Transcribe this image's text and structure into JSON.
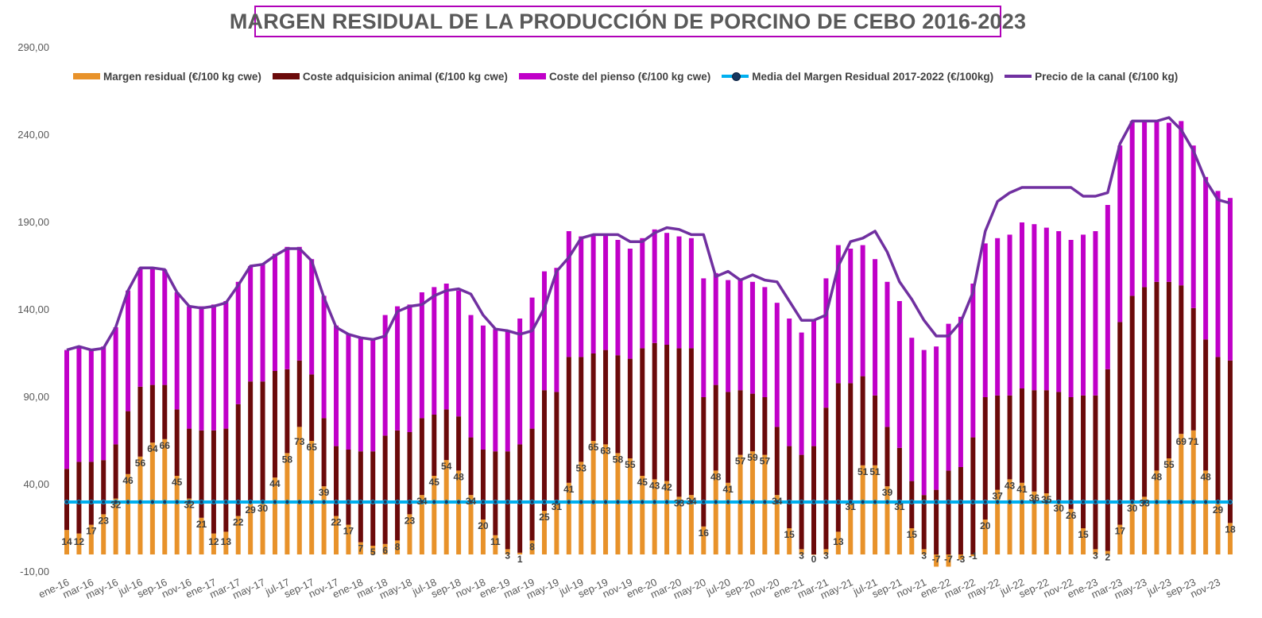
{
  "chart_data": {
    "type": "bar",
    "stacked": true,
    "title": "MARGEN RESIDUAL DE LA PRODUCCIÓN DE PORCINO DE CEBO 2016-2023",
    "ylim": [
      -10,
      290
    ],
    "yticks": [
      "-10,00",
      "40,00",
      "90,00",
      "140,00",
      "190,00",
      "240,00",
      "290,00"
    ],
    "ytick_values": [
      -10,
      40,
      90,
      140,
      190,
      240,
      290
    ],
    "legend_position": "top",
    "categories": [
      "ene-16",
      "feb-16",
      "mar-16",
      "abr-16",
      "may-16",
      "jun-16",
      "jul-16",
      "ago-16",
      "sep-16",
      "oct-16",
      "nov-16",
      "dic-16",
      "ene-17",
      "feb-17",
      "mar-17",
      "abr-17",
      "may-17",
      "jun-17",
      "jul-17",
      "ago-17",
      "sep-17",
      "oct-17",
      "nov-17",
      "dic-17",
      "ene-18",
      "feb-18",
      "mar-18",
      "abr-18",
      "may-18",
      "jun-18",
      "jul-18",
      "ago-18",
      "sep-18",
      "oct-18",
      "nov-18",
      "dic-18",
      "ene-19",
      "feb-19",
      "mar-19",
      "abr-19",
      "may-19",
      "jun-19",
      "jul-19",
      "ago-19",
      "sep-19",
      "oct-19",
      "nov-19",
      "dic-19",
      "ene-20",
      "feb-20",
      "mar-20",
      "abr-20",
      "may-20",
      "jun-20",
      "jul-20",
      "ago-20",
      "sep-20",
      "oct-20",
      "nov-20",
      "dic-20",
      "ene-21",
      "feb-21",
      "mar-21",
      "abr-21",
      "may-21",
      "jun-21",
      "jul-21",
      "ago-21",
      "sep-21",
      "oct-21",
      "nov-21",
      "dic-21",
      "ene-22",
      "feb-22",
      "mar-22",
      "abr-22",
      "may-22",
      "jun-22",
      "jul-22",
      "ago-22",
      "sep-22",
      "oct-22",
      "nov-22",
      "dic-22",
      "ene-23",
      "feb-23",
      "mar-23",
      "abr-23",
      "may-23",
      "jun-23",
      "jul-23",
      "ago-23",
      "sep-23",
      "oct-23",
      "nov-23",
      "dic-23"
    ],
    "xtick_labels": [
      "ene-16",
      "mar-16",
      "may-16",
      "jul-16",
      "sep-16",
      "nov-16",
      "ene-17",
      "mar-17",
      "may-17",
      "jul-17",
      "sep-17",
      "nov-17",
      "ene-18",
      "mar-18",
      "may-18",
      "jul-18",
      "sep-18",
      "nov-18",
      "ene-19",
      "mar-19",
      "may-19",
      "jul-19",
      "sep-19",
      "nov-19",
      "ene-20",
      "mar-20",
      "may-20",
      "jul-20",
      "sep-20",
      "nov-20",
      "ene-21",
      "mar-21",
      "may-21",
      "jul-21",
      "sep-21",
      "nov-21",
      "ene-22",
      "mar-22",
      "may-22",
      "jul-22",
      "sep-22",
      "nov-22",
      "ene-23",
      "mar-23",
      "may-23",
      "jul-23",
      "sep-23",
      "nov-23"
    ],
    "series": [
      {
        "name": "Margen residual (€/100 kg cwe)",
        "color": "#e8922a",
        "kind": "bar",
        "values": [
          14,
          12,
          17,
          23,
          32,
          46,
          56,
          64,
          66,
          45,
          32,
          21,
          12,
          13,
          22,
          29,
          30,
          44,
          58,
          73,
          65,
          39,
          22,
          17,
          7,
          5,
          6,
          8,
          23,
          34,
          45,
          54,
          48,
          34,
          20,
          11,
          3,
          1,
          8,
          25,
          31,
          41,
          53,
          65,
          63,
          58,
          55,
          45,
          43,
          42,
          33,
          34,
          16,
          48,
          41,
          57,
          59,
          57,
          34,
          15,
          3,
          0,
          3,
          13,
          31,
          51,
          51,
          39,
          31,
          15,
          3,
          -7,
          -7,
          -3,
          -1,
          20,
          37,
          43,
          41,
          36,
          35,
          30,
          26,
          15,
          3,
          2,
          17,
          30,
          33,
          48,
          55,
          69,
          71,
          48,
          29,
          18
        ]
      },
      {
        "name": "Coste adquisicion animal (€/100 kg cwe)",
        "color": "#6b0a0a",
        "kind": "bar",
        "values": [
          35,
          41,
          36,
          31,
          31,
          36,
          40,
          33,
          31,
          38,
          40,
          50,
          59,
          59,
          64,
          70,
          69,
          61,
          48,
          38,
          38,
          39,
          40,
          43,
          52,
          54,
          62,
          63,
          47,
          44,
          35,
          29,
          31,
          33,
          40,
          48,
          56,
          62,
          64,
          69,
          62,
          72,
          60,
          50,
          54,
          56,
          57,
          73,
          78,
          78,
          85,
          84,
          74,
          49,
          52,
          37,
          33,
          33,
          39,
          47,
          54,
          62,
          81,
          85,
          67,
          51,
          40,
          34,
          30,
          27,
          31,
          37,
          48,
          50,
          67,
          70,
          54,
          48,
          54,
          58,
          59,
          63,
          64,
          76,
          88,
          104,
          116,
          118,
          120,
          108,
          101,
          85,
          70,
          75,
          84,
          93
        ]
      },
      {
        "name": "Coste del pienso (€/100 kg cwe)",
        "color": "#c000c8",
        "kind": "bar",
        "values": [
          68,
          66,
          64,
          65,
          67,
          69,
          68,
          67,
          66,
          67,
          70,
          71,
          72,
          73,
          70,
          66,
          67,
          67,
          70,
          65,
          66,
          70,
          69,
          66,
          65,
          64,
          69,
          71,
          73,
          72,
          73,
          72,
          72,
          70,
          71,
          70,
          69,
          72,
          75,
          68,
          71,
          72,
          69,
          68,
          66,
          66,
          63,
          63,
          65,
          64,
          64,
          63,
          68,
          64,
          64,
          64,
          64,
          63,
          71,
          73,
          70,
          72,
          74,
          79,
          77,
          75,
          78,
          83,
          84,
          82,
          83,
          82,
          84,
          86,
          88,
          88,
          90,
          92,
          95,
          95,
          93,
          92,
          90,
          92,
          94,
          94,
          101,
          100,
          95,
          92,
          91,
          94,
          93,
          93,
          95,
          93
        ]
      },
      {
        "name": "Media del Margen Residual 2017-2022 (€/100kg)",
        "color": "#00b0f0",
        "kind": "line",
        "constant": 30
      },
      {
        "name": "Precio de la canal (€/100 kg)",
        "color": "#7030a0",
        "kind": "line",
        "values": [
          117,
          119,
          117,
          118,
          130,
          151,
          164,
          164,
          163,
          150,
          142,
          141,
          142,
          144,
          154,
          165,
          166,
          171,
          175,
          175,
          168,
          147,
          130,
          126,
          124,
          123,
          125,
          139,
          142,
          143,
          148,
          151,
          152,
          149,
          137,
          129,
          128,
          126,
          128,
          141,
          162,
          170,
          181,
          183,
          183,
          183,
          179,
          179,
          184,
          187,
          186,
          183,
          183,
          159,
          162,
          157,
          160,
          157,
          156,
          145,
          134,
          134,
          137,
          165,
          179,
          181,
          185,
          173,
          156,
          146,
          134,
          125,
          125,
          133,
          150,
          185,
          202,
          207,
          210,
          210,
          210,
          210,
          210,
          205,
          205,
          207,
          235,
          248,
          248,
          248,
          250,
          243,
          231,
          214,
          203,
          201
        ]
      }
    ]
  }
}
